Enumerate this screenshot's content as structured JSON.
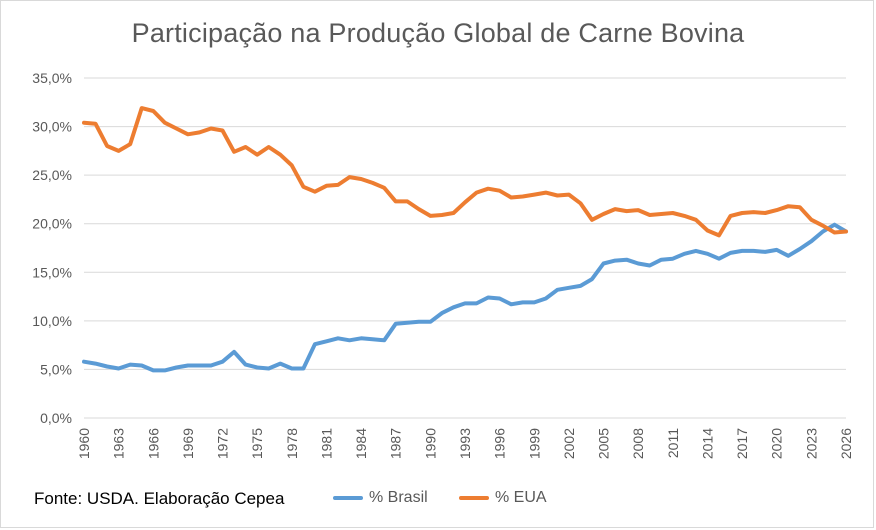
{
  "chart_data": {
    "type": "line",
    "title": "Participação na Produção Global de Carne Bovina",
    "ylim": [
      0,
      35
    ],
    "yticks": [
      "0,0%",
      "5,0%",
      "10,0%",
      "15,0%",
      "20,0%",
      "25,0%",
      "30,0%",
      "35,0%"
    ],
    "ytick_values": [
      0,
      5,
      10,
      15,
      20,
      25,
      30,
      35
    ],
    "x_start": 1960,
    "x_end": 2026,
    "xtick_labels": [
      "1960",
      "1963",
      "1966",
      "1969",
      "1972",
      "1975",
      "1978",
      "1981",
      "1984",
      "1987",
      "1990",
      "1993",
      "1996",
      "1999",
      "2002",
      "2005",
      "2008",
      "2011",
      "2014",
      "2017",
      "2020",
      "2023",
      "2026"
    ],
    "grid": true,
    "legend_position": "bottom",
    "series": [
      {
        "name": "% Brasil",
        "color": "#5b9bd5",
        "values": [
          5.8,
          5.6,
          5.3,
          5.1,
          5.5,
          5.4,
          4.9,
          4.9,
          5.2,
          5.4,
          5.4,
          5.4,
          5.8,
          6.8,
          5.5,
          5.2,
          5.1,
          5.6,
          5.1,
          5.1,
          7.6,
          7.9,
          8.2,
          8.0,
          8.2,
          8.1,
          8.0,
          9.7,
          9.8,
          9.9,
          9.9,
          10.8,
          11.4,
          11.8,
          11.8,
          12.4,
          12.3,
          11.7,
          11.9,
          11.9,
          12.3,
          13.2,
          13.4,
          13.6,
          14.3,
          15.9,
          16.2,
          16.3,
          15.9,
          15.7,
          16.3,
          16.4,
          16.9,
          17.2,
          16.9,
          16.4,
          17.0,
          17.2,
          17.2,
          17.1,
          17.3,
          16.7,
          17.4,
          18.2,
          19.2,
          19.9,
          19.2
        ]
      },
      {
        "name": "% EUA",
        "color": "#ed7d31",
        "values": [
          30.4,
          30.3,
          28.0,
          27.5,
          28.2,
          31.9,
          31.6,
          30.4,
          29.8,
          29.2,
          29.4,
          29.8,
          29.6,
          27.4,
          27.9,
          27.1,
          27.9,
          27.1,
          26.0,
          23.8,
          23.3,
          23.9,
          24.0,
          24.8,
          24.6,
          24.2,
          23.7,
          22.3,
          22.3,
          21.5,
          20.8,
          20.9,
          21.1,
          22.2,
          23.2,
          23.6,
          23.4,
          22.7,
          22.8,
          23.0,
          23.2,
          22.9,
          23.0,
          22.1,
          20.4,
          21.0,
          21.5,
          21.3,
          21.4,
          20.9,
          21.0,
          21.1,
          20.8,
          20.4,
          19.3,
          18.8,
          20.8,
          21.1,
          21.2,
          21.1,
          21.4,
          21.8,
          21.7,
          20.4,
          19.8,
          19.1,
          19.2
        ]
      }
    ]
  },
  "source_text": "Fonte: USDA. Elaboração Cepea"
}
